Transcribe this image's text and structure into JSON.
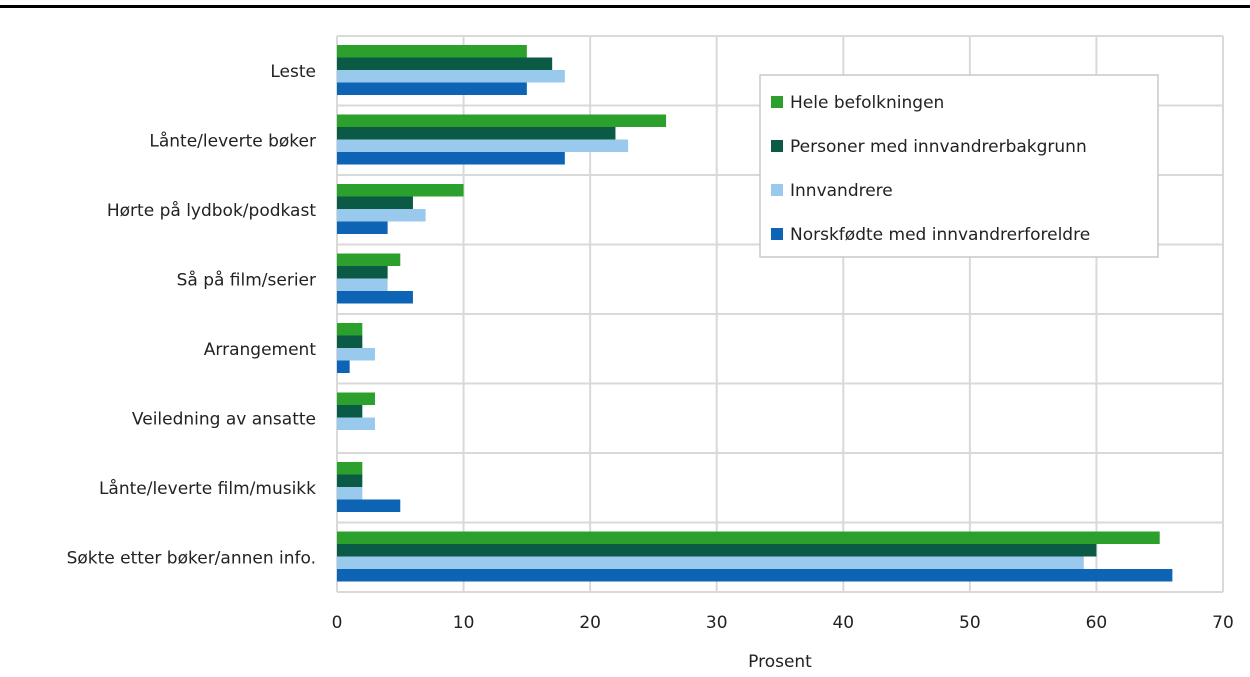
{
  "header": {
    "title_fragment": ""
  },
  "chart_data": {
    "type": "bar",
    "orientation": "horizontal",
    "categories": [
      "Leste",
      "Lånte/leverte bøker",
      "Hørte på lydbok/podkast",
      "Så på film/serier",
      "Arrangement",
      "Veiledning av ansatte",
      "Lånte/leverte film/musikk",
      "Søkte etter bøker/annen info."
    ],
    "series": [
      {
        "name": "Hele befolkningen",
        "color": "#2ca02c",
        "values": [
          15,
          26,
          10,
          5,
          2,
          3,
          2,
          65
        ]
      },
      {
        "name": "Personer med innvandrerbakgrunn",
        "color": "#0b5a45",
        "values": [
          17,
          22,
          6,
          4,
          2,
          2,
          2,
          60
        ]
      },
      {
        "name": "Innvandrere",
        "color": "#99c9ec",
        "values": [
          18,
          23,
          7,
          4,
          3,
          3,
          2,
          59
        ]
      },
      {
        "name": "Norskfødte med innvandrerforeldre",
        "color": "#0d64b4",
        "values": [
          15,
          18,
          4,
          6,
          1,
          0,
          5,
          66
        ]
      }
    ],
    "xlabel": "Prosent",
    "xlim": [
      0,
      70
    ],
    "xticks": [
      "0",
      "10",
      "20",
      "30",
      "40",
      "50",
      "60",
      "70"
    ],
    "grid": true,
    "legend_position": "top-right"
  }
}
